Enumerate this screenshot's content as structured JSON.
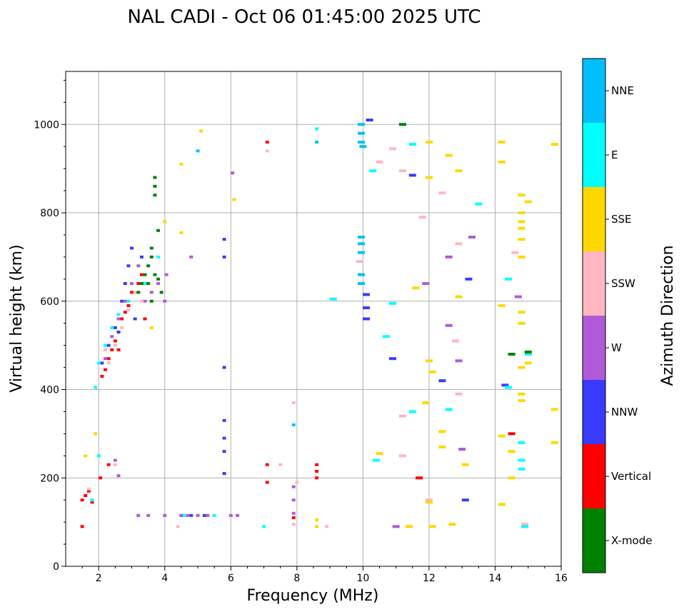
{
  "chart_data": {
    "type": "scatter",
    "title": "NAL CADI - Oct 06 01:45:00 2025 UTC",
    "xlabel": "Frequency (MHz)",
    "ylabel": "Virtual height (km)",
    "xlim": [
      1,
      16
    ],
    "ylim": [
      0,
      1120
    ],
    "xticks": [
      2,
      4,
      6,
      8,
      10,
      12,
      14,
      16
    ],
    "xtick_labels": [
      "2",
      "4",
      "6",
      "8",
      "10",
      "12",
      "14",
      "16"
    ],
    "yticks": [
      0,
      200,
      400,
      600,
      800,
      1000
    ],
    "ytick_labels": [
      "0",
      "200",
      "400",
      "600",
      "800",
      "1000"
    ],
    "grid": true,
    "colorbar": {
      "label": "Azimuth Direction",
      "categories": [
        {
          "name": "X-mode",
          "color": "#008000"
        },
        {
          "name": "Vertical",
          "color": "#ff0000"
        },
        {
          "name": "NNW",
          "color": "#3a3aff"
        },
        {
          "name": "W",
          "color": "#b05ad8"
        },
        {
          "name": "SSW",
          "color": "#ffb6c1"
        },
        {
          "name": "SSE",
          "color": "#ffd700"
        },
        {
          "name": "E",
          "color": "#00ffff"
        },
        {
          "name": "NNE",
          "color": "#00bfff"
        }
      ]
    },
    "series": [
      {
        "name": "Vertical",
        "points": [
          [
            1.5,
            150
          ],
          [
            1.6,
            160
          ],
          [
            1.7,
            170
          ],
          [
            1.8,
            145
          ],
          [
            2.1,
            430
          ],
          [
            2.2,
            445
          ],
          [
            2.3,
            470
          ],
          [
            2.4,
            490
          ],
          [
            2.5,
            510
          ],
          [
            2.6,
            530
          ],
          [
            2.7,
            560
          ],
          [
            2.8,
            575
          ],
          [
            2.9,
            590
          ],
          [
            3.0,
            620
          ],
          [
            2.05,
            200
          ],
          [
            2.3,
            230
          ],
          [
            7.1,
            230
          ],
          [
            7.1,
            190
          ],
          [
            7.1,
            960
          ],
          [
            8.6,
            215
          ],
          [
            8.6,
            230
          ],
          [
            8.6,
            200
          ],
          [
            11.7,
            200
          ],
          [
            14.5,
            300
          ],
          [
            1.5,
            90
          ],
          [
            3.2,
            640
          ],
          [
            3.3,
            660
          ],
          [
            3.4,
            560
          ],
          [
            7.9,
            110
          ],
          [
            2.6,
            490
          ]
        ]
      },
      {
        "name": "NNW",
        "points": [
          [
            2.1,
            460
          ],
          [
            2.3,
            500
          ],
          [
            2.5,
            540
          ],
          [
            2.7,
            600
          ],
          [
            2.8,
            640
          ],
          [
            2.9,
            680
          ],
          [
            3.0,
            720
          ],
          [
            3.1,
            560
          ],
          [
            5.8,
            330
          ],
          [
            5.8,
            290
          ],
          [
            5.8,
            260
          ],
          [
            5.8,
            210
          ],
          [
            5.8,
            450
          ],
          [
            5.8,
            740
          ],
          [
            5.8,
            700
          ],
          [
            10.1,
            615
          ],
          [
            10.1,
            585
          ],
          [
            10.1,
            560
          ],
          [
            10.2,
            1010
          ],
          [
            10.9,
            470
          ],
          [
            11.5,
            885
          ],
          [
            12.4,
            420
          ],
          [
            13.1,
            150
          ],
          [
            13.2,
            650
          ],
          [
            14.3,
            410
          ],
          [
            4.5,
            115
          ],
          [
            4.8,
            115
          ],
          [
            5.2,
            115
          ],
          [
            2.6,
            530
          ],
          [
            3.3,
            700
          ]
        ]
      },
      {
        "name": "W",
        "points": [
          [
            2.2,
            470
          ],
          [
            2.4,
            520
          ],
          [
            2.6,
            560
          ],
          [
            2.8,
            600
          ],
          [
            3.0,
            640
          ],
          [
            3.2,
            680
          ],
          [
            3.4,
            600
          ],
          [
            3.6,
            620
          ],
          [
            3.8,
            640
          ],
          [
            4.0,
            600
          ],
          [
            4.05,
            660
          ],
          [
            4.0,
            115
          ],
          [
            3.5,
            115
          ],
          [
            3.2,
            115
          ],
          [
            4.5,
            115
          ],
          [
            4.7,
            115
          ],
          [
            5.0,
            115
          ],
          [
            5.3,
            115
          ],
          [
            6.0,
            115
          ],
          [
            6.2,
            115
          ],
          [
            7.9,
            180
          ],
          [
            7.9,
            150
          ],
          [
            7.9,
            120
          ],
          [
            2.5,
            240
          ],
          [
            2.6,
            205
          ],
          [
            4.8,
            700
          ],
          [
            6.05,
            890
          ],
          [
            12.6,
            700
          ],
          [
            12.6,
            545
          ],
          [
            12.9,
            465
          ],
          [
            13.0,
            265
          ],
          [
            13.3,
            745
          ],
          [
            14.7,
            610
          ],
          [
            11.0,
            90
          ],
          [
            11.9,
            640
          ]
        ]
      },
      {
        "name": "SSW",
        "points": [
          [
            1.7,
            175
          ],
          [
            2.3,
            460
          ],
          [
            2.5,
            500
          ],
          [
            2.7,
            540
          ],
          [
            2.9,
            580
          ],
          [
            3.1,
            620
          ],
          [
            3.3,
            600
          ],
          [
            2.5,
            230
          ],
          [
            4.4,
            90
          ],
          [
            7.1,
            940
          ],
          [
            7.5,
            230
          ],
          [
            7.9,
            95
          ],
          [
            7.9,
            370
          ],
          [
            8.0,
            190
          ],
          [
            8.9,
            90
          ],
          [
            9.9,
            690
          ],
          [
            10.5,
            915
          ],
          [
            10.9,
            945
          ],
          [
            11.2,
            340
          ],
          [
            11.2,
            250
          ],
          [
            11.2,
            895
          ],
          [
            11.8,
            790
          ],
          [
            12.0,
            150
          ],
          [
            12.4,
            845
          ],
          [
            12.8,
            510
          ],
          [
            12.9,
            390
          ],
          [
            12.9,
            730
          ],
          [
            14.6,
            710
          ],
          [
            14.9,
            95
          ],
          [
            2.2,
            490
          ]
        ]
      },
      {
        "name": "SSE",
        "points": [
          [
            1.6,
            250
          ],
          [
            1.9,
            300
          ],
          [
            3.6,
            540
          ],
          [
            4.0,
            780
          ],
          [
            4.5,
            910
          ],
          [
            4.5,
            755
          ],
          [
            5.1,
            985
          ],
          [
            6.1,
            830
          ],
          [
            8.6,
            105
          ],
          [
            8.6,
            90
          ],
          [
            10.5,
            255
          ],
          [
            11.4,
            90
          ],
          [
            11.6,
            630
          ],
          [
            11.9,
            370
          ],
          [
            12.0,
            465
          ],
          [
            12.0,
            145
          ],
          [
            12.0,
            960
          ],
          [
            12.0,
            880
          ],
          [
            12.1,
            440
          ],
          [
            12.1,
            90
          ],
          [
            12.4,
            305
          ],
          [
            12.4,
            270
          ],
          [
            12.6,
            930
          ],
          [
            12.7,
            95
          ],
          [
            12.9,
            895
          ],
          [
            12.9,
            610
          ],
          [
            13.1,
            230
          ],
          [
            14.2,
            960
          ],
          [
            14.2,
            915
          ],
          [
            14.2,
            590
          ],
          [
            14.2,
            295
          ],
          [
            14.2,
            140
          ],
          [
            14.5,
            260
          ],
          [
            14.5,
            200
          ],
          [
            14.8,
            840
          ],
          [
            14.8,
            800
          ],
          [
            14.8,
            780
          ],
          [
            14.8,
            765
          ],
          [
            14.8,
            740
          ],
          [
            14.8,
            700
          ],
          [
            14.8,
            575
          ],
          [
            14.8,
            550
          ],
          [
            14.8,
            450
          ],
          [
            14.8,
            390
          ],
          [
            14.8,
            375
          ],
          [
            15.0,
            825
          ],
          [
            15.0,
            460
          ],
          [
            15.8,
            955
          ],
          [
            15.8,
            355
          ],
          [
            15.8,
            280
          ]
        ]
      },
      {
        "name": "E",
        "points": [
          [
            1.9,
            405
          ],
          [
            2.0,
            460
          ],
          [
            2.2,
            500
          ],
          [
            2.4,
            540
          ],
          [
            2.6,
            570
          ],
          [
            2.9,
            600
          ],
          [
            3.4,
            640
          ],
          [
            3.8,
            700
          ],
          [
            1.8,
            150
          ],
          [
            2.0,
            250
          ],
          [
            7.0,
            90
          ],
          [
            8.6,
            990
          ],
          [
            9.1,
            605
          ],
          [
            10.3,
            895
          ],
          [
            10.4,
            240
          ],
          [
            10.7,
            520
          ],
          [
            10.9,
            595
          ],
          [
            11.5,
            955
          ],
          [
            11.5,
            350
          ],
          [
            12.6,
            355
          ],
          [
            13.5,
            820
          ],
          [
            14.4,
            650
          ],
          [
            14.4,
            405
          ],
          [
            14.8,
            280
          ],
          [
            14.8,
            240
          ],
          [
            14.8,
            220
          ],
          [
            14.9,
            90
          ],
          [
            4.6,
            115
          ],
          [
            5.5,
            115
          ],
          [
            15.0,
            480
          ]
        ]
      },
      {
        "name": "NNE",
        "points": [
          [
            9.95,
            1000
          ],
          [
            9.95,
            980
          ],
          [
            9.95,
            960
          ],
          [
            9.95,
            745
          ],
          [
            9.95,
            730
          ],
          [
            9.95,
            710
          ],
          [
            9.95,
            660
          ],
          [
            9.95,
            640
          ],
          [
            7.9,
            320
          ],
          [
            5.0,
            940
          ],
          [
            8.6,
            960
          ],
          [
            10.0,
            950
          ]
        ]
      },
      {
        "name": "X-mode",
        "points": [
          [
            3.7,
            880
          ],
          [
            3.7,
            860
          ],
          [
            3.7,
            840
          ],
          [
            3.8,
            760
          ],
          [
            3.6,
            720
          ],
          [
            3.6,
            700
          ],
          [
            3.5,
            680
          ],
          [
            3.4,
            660
          ],
          [
            3.3,
            640
          ],
          [
            3.2,
            620
          ],
          [
            3.7,
            660
          ],
          [
            3.8,
            650
          ],
          [
            3.9,
            620
          ],
          [
            3.6,
            600
          ],
          [
            3.5,
            640
          ],
          [
            14.5,
            480
          ],
          [
            15.0,
            485
          ],
          [
            11.2,
            1000
          ]
        ]
      }
    ]
  }
}
